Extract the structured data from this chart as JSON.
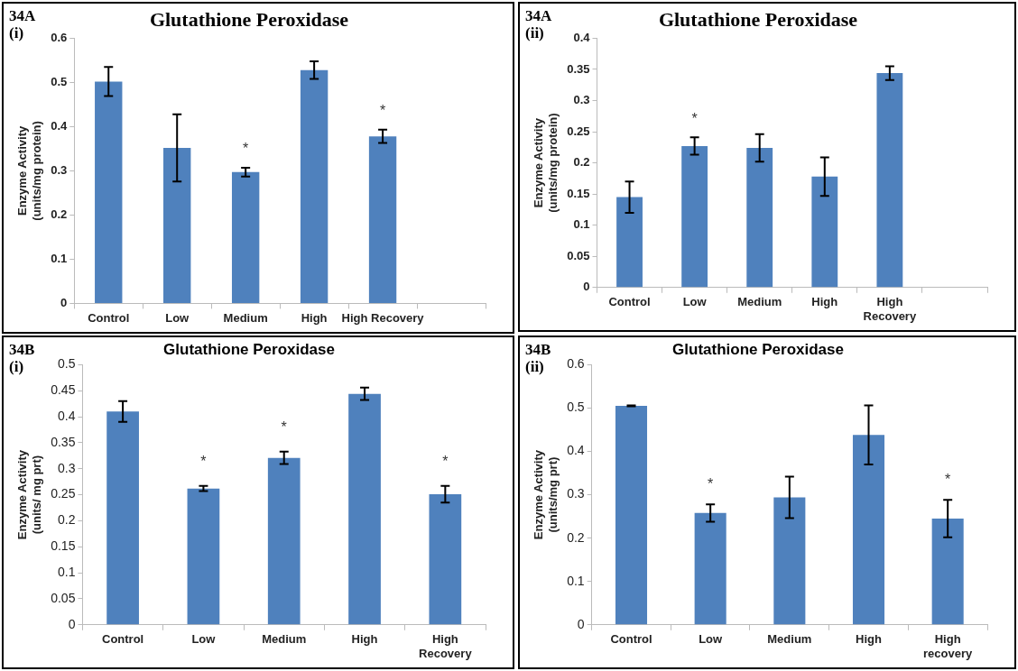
{
  "chart_data": [
    {
      "type": "bar",
      "title": "Glutathione Peroxidase",
      "ylabel": "Enzyme Activity\n(units/mg protein)",
      "categories": [
        "Control",
        "Low",
        "Medium",
        "High",
        "High Recovery",
        null
      ],
      "values": [
        0.502,
        0.352,
        0.297,
        0.528,
        0.378,
        null
      ],
      "errors": [
        0.033,
        0.076,
        0.01,
        0.02,
        0.015,
        null
      ],
      "color": "#4f81bd",
      "ylim": [
        0,
        0.6
      ],
      "yticks": [
        0,
        0.1,
        0.2,
        0.3,
        0.4,
        0.5,
        0.6
      ],
      "grid": false,
      "legend": false,
      "annotations": [
        "34A",
        "(i)",
        {
          "text": "*",
          "x": "Medium",
          "y": 0.297
        },
        {
          "text": "*",
          "x": "High Recovery",
          "y": 0.378
        }
      ]
    },
    {
      "type": "bar",
      "title": "Glutathione Peroxidase",
      "ylabel": "Enzyme Activity\n(units/mg protein)",
      "categories": [
        "Control",
        "Low",
        "Medium",
        "High",
        "High Recovery",
        null
      ],
      "values": [
        0.145,
        0.227,
        0.224,
        0.178,
        0.344,
        null
      ],
      "errors": [
        0.025,
        0.014,
        0.022,
        0.031,
        0.011,
        null
      ],
      "color": "#4f81bd",
      "ylim": [
        0,
        0.4
      ],
      "yticks": [
        0,
        0.05,
        0.1,
        0.15,
        0.2,
        0.25,
        0.3,
        0.35,
        0.4
      ],
      "grid": false,
      "legend": false,
      "annotations": [
        "34A",
        "(ii)",
        {
          "text": "*",
          "x": "Low",
          "y": 0.227
        }
      ]
    },
    {
      "type": "bar",
      "title": "Glutathione Peroxidase",
      "ylabel": "Enzyme Activity\n(units/ mg prt)",
      "categories": [
        "Control",
        "Low",
        "Medium",
        "High",
        "High Recovery"
      ],
      "values": [
        0.41,
        0.262,
        0.321,
        0.444,
        0.251
      ],
      "errors": [
        0.02,
        0.005,
        0.012,
        0.012,
        0.016
      ],
      "color": "#4f81bd",
      "ylim": [
        0,
        0.5
      ],
      "yticks": [
        0,
        0.05,
        0.1,
        0.15,
        0.2,
        0.25,
        0.3,
        0.35,
        0.4,
        0.45,
        0.5
      ],
      "grid": false,
      "legend": false,
      "annotations": [
        "34B",
        "(i)",
        {
          "text": "*",
          "x": "Low",
          "y": 0.262
        },
        {
          "text": "*",
          "x": "Medium",
          "y": 0.321
        },
        {
          "text": "*",
          "x": "High Recovery",
          "y": 0.251
        }
      ]
    },
    {
      "type": "bar",
      "title": "Glutathione Peroxidase",
      "ylabel": "Enzyme Activity\n(units/mg prt)",
      "categories": [
        "Control",
        "Low",
        "Medium",
        "High",
        "High recovery"
      ],
      "values": [
        0.505,
        0.258,
        0.294,
        0.438,
        0.245
      ],
      "errors": [
        0.001,
        0.02,
        0.048,
        0.068,
        0.043
      ],
      "color": "#4f81bd",
      "ylim": [
        0,
        0.6
      ],
      "yticks": [
        0,
        0.1,
        0.2,
        0.3,
        0.4,
        0.5,
        0.6
      ],
      "grid": false,
      "legend": false,
      "annotations": [
        "34B",
        "(ii)",
        {
          "text": "*",
          "x": "Low",
          "y": 0.258
        },
        {
          "text": "*",
          "x": "High recovery",
          "y": 0.245
        }
      ]
    }
  ]
}
